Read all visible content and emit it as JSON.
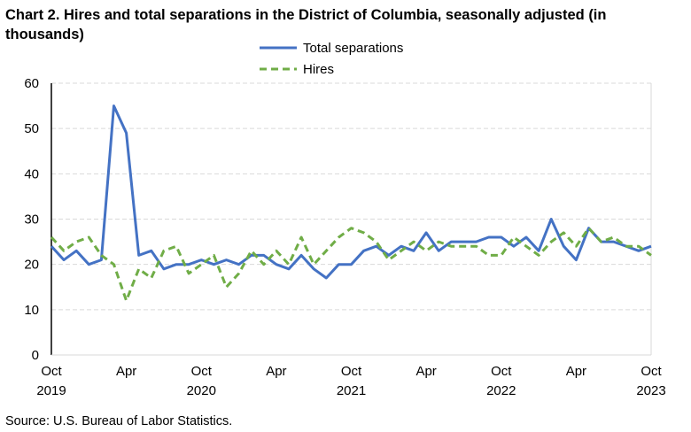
{
  "chart_data": {
    "type": "line",
    "title": "Chart 2. Hires and total separations in the District of Columbia, seasonally adjusted (in thousands)",
    "source": "Source: U.S. Bureau of Labor Statistics.",
    "xlabel": "",
    "ylabel": "",
    "ylim": [
      0,
      60
    ],
    "yticks": [
      0,
      10,
      20,
      30,
      40,
      50,
      60
    ],
    "grid": true,
    "legend_placement": "top-center",
    "x_start": "Oct 2019",
    "x_end": "Oct 2023",
    "xtick_labels": [
      {
        "index": 0,
        "month": "Oct",
        "year": "2019"
      },
      {
        "index": 6,
        "month": "Apr",
        "year": ""
      },
      {
        "index": 12,
        "month": "Oct",
        "year": "2020"
      },
      {
        "index": 18,
        "month": "Apr",
        "year": ""
      },
      {
        "index": 24,
        "month": "Oct",
        "year": "2021"
      },
      {
        "index": 30,
        "month": "Apr",
        "year": ""
      },
      {
        "index": 36,
        "month": "Oct",
        "year": "2022"
      },
      {
        "index": 42,
        "month": "Apr",
        "year": ""
      },
      {
        "index": 48,
        "month": "Oct",
        "year": "2023"
      }
    ],
    "series": [
      {
        "name": "Total separations",
        "color": "#4472c4",
        "style": "solid",
        "values": [
          24,
          21,
          23,
          20,
          21,
          55,
          49,
          22,
          23,
          19,
          20,
          20,
          21,
          20,
          21,
          20,
          22,
          22,
          20,
          19,
          22,
          19,
          17,
          20,
          20,
          23,
          24,
          22,
          24,
          23,
          27,
          23,
          25,
          25,
          25,
          26,
          26,
          24,
          26,
          23,
          30,
          24,
          21,
          28,
          25,
          25,
          24,
          23,
          24
        ]
      },
      {
        "name": "Hires",
        "color": "#70ad47",
        "style": "dashed",
        "values": [
          26,
          23,
          25,
          26,
          22,
          20,
          12,
          19,
          17,
          23,
          24,
          18,
          20,
          22,
          15,
          18,
          23,
          20,
          23,
          20,
          26,
          20,
          23,
          26,
          28,
          27,
          25,
          21,
          23,
          25,
          23,
          25,
          24,
          24,
          24,
          22,
          22,
          26,
          24,
          22,
          25,
          27,
          24,
          28,
          25,
          26,
          24,
          24,
          22
        ]
      }
    ]
  }
}
